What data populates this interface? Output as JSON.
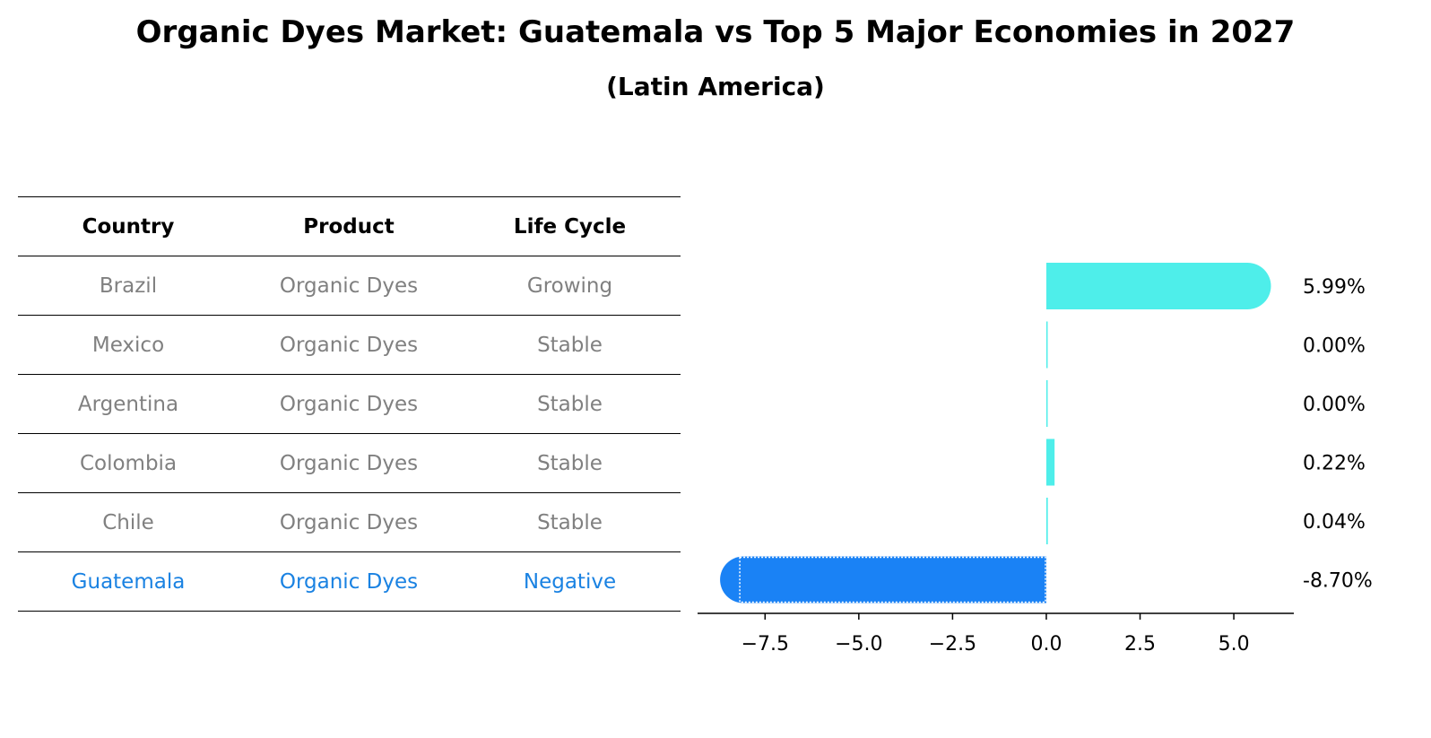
{
  "title": "Organic Dyes Market: Guatemala vs Top 5 Major Economies in 2027",
  "subtitle": "(Latin America)",
  "table": {
    "headers": [
      "Country",
      "Product",
      "Life Cycle"
    ],
    "rows": [
      [
        "Brazil",
        "Organic Dyes",
        "Growing"
      ],
      [
        "Mexico",
        "Organic Dyes",
        "Stable"
      ],
      [
        "Argentina",
        "Organic Dyes",
        "Stable"
      ],
      [
        "Colombia",
        "Organic Dyes",
        "Stable"
      ],
      [
        "Chile",
        "Organic Dyes",
        "Stable"
      ],
      [
        "Guatemala",
        "Organic Dyes",
        "Negative"
      ]
    ],
    "highlight_row": 5
  },
  "colors": {
    "positive_bar": "#4eeeea",
    "negative_bar": "#1a82f5",
    "highlight_text": "#1a82e2",
    "row_text": "#808080"
  },
  "chart_data": {
    "type": "bar",
    "orientation": "horizontal",
    "categories": [
      "Brazil",
      "Mexico",
      "Argentina",
      "Colombia",
      "Chile",
      "Guatemala"
    ],
    "values": [
      5.99,
      0.0,
      0.0,
      0.22,
      0.04,
      -8.7
    ],
    "value_labels": [
      "5.99%",
      "0.00%",
      "0.00%",
      "0.22%",
      "0.04%",
      "-8.70%"
    ],
    "xticks": [
      -7.5,
      -5.0,
      -2.5,
      0.0,
      2.5,
      5.0
    ],
    "xtick_labels": [
      "−7.5",
      "−5.0",
      "−2.5",
      "0.0",
      "2.5",
      "5.0"
    ],
    "xlim": [
      -9.3,
      6.6
    ],
    "grid": false
  }
}
